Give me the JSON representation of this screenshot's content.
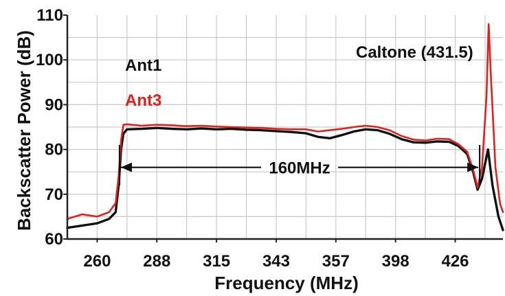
{
  "chart_data": {
    "type": "line",
    "title": "",
    "xlabel": "Frequency (MHz)",
    "ylabel": "Backscatter Power (dB)",
    "ylim": [
      60,
      110
    ],
    "yticks": [
      60,
      70,
      80,
      90,
      100,
      110
    ],
    "ytick_labels": [
      "60",
      "70",
      "80",
      "90",
      "100",
      "110"
    ],
    "xtick_labels": [
      "260",
      "288",
      "315",
      "343",
      "357",
      "398",
      "426"
    ],
    "grid": true,
    "legend_placement": "top-left",
    "series": [
      {
        "name": "Ant1",
        "color": "#111111",
        "points": [
          [
            0.0,
            62.5
          ],
          [
            0.5,
            63.0
          ],
          [
            1.0,
            63.5
          ],
          [
            1.4,
            64.5
          ],
          [
            1.62,
            66.0
          ],
          [
            1.72,
            72.0
          ],
          [
            1.8,
            80.0
          ],
          [
            1.88,
            83.5
          ],
          [
            2.0,
            84.5
          ],
          [
            2.5,
            84.6
          ],
          [
            3.0,
            84.8
          ],
          [
            3.5,
            84.6
          ],
          [
            4.0,
            84.5
          ],
          [
            4.5,
            84.7
          ],
          [
            5.0,
            84.5
          ],
          [
            5.5,
            84.6
          ],
          [
            6.0,
            84.4
          ],
          [
            6.5,
            84.3
          ],
          [
            7.0,
            84.1
          ],
          [
            7.5,
            83.9
          ],
          [
            8.0,
            83.6
          ],
          [
            8.4,
            82.8
          ],
          [
            8.8,
            82.5
          ],
          [
            9.2,
            83.2
          ],
          [
            9.6,
            84.0
          ],
          [
            10.0,
            84.5
          ],
          [
            10.4,
            84.3
          ],
          [
            10.8,
            83.5
          ],
          [
            11.2,
            82.3
          ],
          [
            11.6,
            81.6
          ],
          [
            12.0,
            81.5
          ],
          [
            12.4,
            81.8
          ],
          [
            12.8,
            81.7
          ],
          [
            13.1,
            80.8
          ],
          [
            13.4,
            79.0
          ],
          [
            13.6,
            75.0
          ],
          [
            13.75,
            71.0
          ],
          [
            13.9,
            73.5
          ],
          [
            14.1,
            80.0
          ],
          [
            14.25,
            72.0
          ],
          [
            14.45,
            65.0
          ],
          [
            14.6,
            62.0
          ]
        ]
      },
      {
        "name": "Ant3",
        "color": "#e0201c",
        "points": [
          [
            0.0,
            64.5
          ],
          [
            0.5,
            65.5
          ],
          [
            1.0,
            65.0
          ],
          [
            1.4,
            66.0
          ],
          [
            1.62,
            68.0
          ],
          [
            1.72,
            74.0
          ],
          [
            1.8,
            82.0
          ],
          [
            1.88,
            85.5
          ],
          [
            2.0,
            85.6
          ],
          [
            2.5,
            85.3
          ],
          [
            3.0,
            85.5
          ],
          [
            3.5,
            85.4
          ],
          [
            4.0,
            85.2
          ],
          [
            4.5,
            85.3
          ],
          [
            5.0,
            85.1
          ],
          [
            5.5,
            85.0
          ],
          [
            6.0,
            84.9
          ],
          [
            6.5,
            84.8
          ],
          [
            7.0,
            84.6
          ],
          [
            7.5,
            84.5
          ],
          [
            8.0,
            84.5
          ],
          [
            8.4,
            84.0
          ],
          [
            8.8,
            84.3
          ],
          [
            9.2,
            84.6
          ],
          [
            9.6,
            85.0
          ],
          [
            10.0,
            85.3
          ],
          [
            10.4,
            85.0
          ],
          [
            10.8,
            84.3
          ],
          [
            11.2,
            83.0
          ],
          [
            11.6,
            82.2
          ],
          [
            12.0,
            82.0
          ],
          [
            12.4,
            82.4
          ],
          [
            12.8,
            82.3
          ],
          [
            13.1,
            81.2
          ],
          [
            13.4,
            79.5
          ],
          [
            13.6,
            75.5
          ],
          [
            13.75,
            71.5
          ],
          [
            13.9,
            76.0
          ],
          [
            14.05,
            92.0
          ],
          [
            14.12,
            108.0
          ],
          [
            14.2,
            96.0
          ],
          [
            14.35,
            76.0
          ],
          [
            14.5,
            68.0
          ],
          [
            14.6,
            66.0
          ]
        ]
      }
    ],
    "annotations": {
      "bandwidth_label": "160MHz",
      "bandwidth_start": 1.75,
      "bandwidth_end": 13.82,
      "bandwidth_level": 76.0,
      "caltone_label": "Caltone (431.5)"
    }
  }
}
